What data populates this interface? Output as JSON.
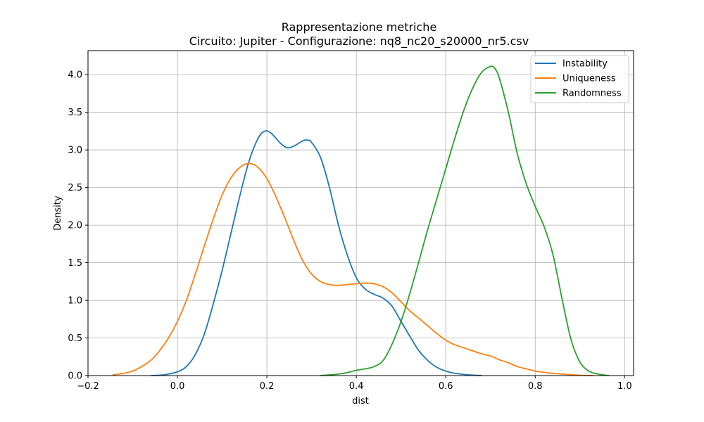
{
  "chart_data": {
    "type": "line",
    "title": "Rappresentazione metriche",
    "subtitle": "Circuito: Jupiter - Configurazione: nq8_nc20_s20000_nr5.csv",
    "xlabel": "dist",
    "ylabel": "Density",
    "xlim": [
      -0.2,
      1.02
    ],
    "ylim": [
      0,
      4.32
    ],
    "xticks": [
      "−0.2",
      "0.0",
      "0.2",
      "0.4",
      "0.6",
      "0.8",
      "1.0"
    ],
    "xtick_values": [
      -0.2,
      0.0,
      0.2,
      0.4,
      0.6,
      0.8,
      1.0
    ],
    "yticks": [
      "0.0",
      "0.5",
      "1.0",
      "1.5",
      "2.0",
      "2.5",
      "3.0",
      "3.5",
      "4.0"
    ],
    "ytick_values": [
      0.0,
      0.5,
      1.0,
      1.5,
      2.0,
      2.5,
      3.0,
      3.5,
      4.0
    ],
    "grid": true,
    "legend_position": "top-right",
    "series": [
      {
        "name": "Instability",
        "color": "#1f77b4",
        "points": [
          [
            -0.06,
            0.0
          ],
          [
            -0.03,
            0.01
          ],
          [
            0.0,
            0.05
          ],
          [
            0.02,
            0.12
          ],
          [
            0.04,
            0.28
          ],
          [
            0.06,
            0.55
          ],
          [
            0.08,
            0.95
          ],
          [
            0.1,
            1.4
          ],
          [
            0.12,
            1.9
          ],
          [
            0.14,
            2.4
          ],
          [
            0.16,
            2.85
          ],
          [
            0.18,
            3.15
          ],
          [
            0.195,
            3.25
          ],
          [
            0.21,
            3.22
          ],
          [
            0.23,
            3.09
          ],
          [
            0.245,
            3.03
          ],
          [
            0.26,
            3.05
          ],
          [
            0.28,
            3.12
          ],
          [
            0.29,
            3.13
          ],
          [
            0.3,
            3.1
          ],
          [
            0.32,
            2.9
          ],
          [
            0.34,
            2.5
          ],
          [
            0.36,
            2.0
          ],
          [
            0.38,
            1.6
          ],
          [
            0.4,
            1.3
          ],
          [
            0.42,
            1.15
          ],
          [
            0.44,
            1.08
          ],
          [
            0.46,
            1.03
          ],
          [
            0.48,
            0.92
          ],
          [
            0.5,
            0.72
          ],
          [
            0.52,
            0.52
          ],
          [
            0.54,
            0.33
          ],
          [
            0.56,
            0.2
          ],
          [
            0.58,
            0.11
          ],
          [
            0.6,
            0.06
          ],
          [
            0.62,
            0.03
          ],
          [
            0.65,
            0.01
          ],
          [
            0.68,
            0.0
          ]
        ]
      },
      {
        "name": "Uniqueness",
        "color": "#ff7f0e",
        "points": [
          [
            -0.145,
            0.01
          ],
          [
            -0.12,
            0.03
          ],
          [
            -0.1,
            0.06
          ],
          [
            -0.08,
            0.12
          ],
          [
            -0.06,
            0.2
          ],
          [
            -0.04,
            0.33
          ],
          [
            -0.02,
            0.5
          ],
          [
            0.0,
            0.72
          ],
          [
            0.02,
            1.0
          ],
          [
            0.04,
            1.35
          ],
          [
            0.06,
            1.72
          ],
          [
            0.08,
            2.08
          ],
          [
            0.1,
            2.4
          ],
          [
            0.12,
            2.63
          ],
          [
            0.14,
            2.77
          ],
          [
            0.16,
            2.82
          ],
          [
            0.18,
            2.77
          ],
          [
            0.2,
            2.62
          ],
          [
            0.22,
            2.38
          ],
          [
            0.24,
            2.1
          ],
          [
            0.26,
            1.8
          ],
          [
            0.28,
            1.53
          ],
          [
            0.3,
            1.35
          ],
          [
            0.32,
            1.25
          ],
          [
            0.34,
            1.21
          ],
          [
            0.36,
            1.2
          ],
          [
            0.38,
            1.21
          ],
          [
            0.4,
            1.22
          ],
          [
            0.42,
            1.23
          ],
          [
            0.44,
            1.22
          ],
          [
            0.46,
            1.18
          ],
          [
            0.48,
            1.1
          ],
          [
            0.5,
            0.98
          ],
          [
            0.52,
            0.86
          ],
          [
            0.54,
            0.76
          ],
          [
            0.56,
            0.66
          ],
          [
            0.58,
            0.56
          ],
          [
            0.6,
            0.47
          ],
          [
            0.62,
            0.41
          ],
          [
            0.64,
            0.37
          ],
          [
            0.66,
            0.33
          ],
          [
            0.68,
            0.29
          ],
          [
            0.7,
            0.26
          ],
          [
            0.72,
            0.21
          ],
          [
            0.74,
            0.17
          ],
          [
            0.76,
            0.12
          ],
          [
            0.78,
            0.09
          ],
          [
            0.8,
            0.06
          ],
          [
            0.83,
            0.035
          ],
          [
            0.86,
            0.02
          ],
          [
            0.9,
            0.005
          ],
          [
            0.93,
            0.0
          ]
        ]
      },
      {
        "name": "Randomness",
        "color": "#2ca02c",
        "points": [
          [
            0.32,
            0.0
          ],
          [
            0.36,
            0.02
          ],
          [
            0.38,
            0.04
          ],
          [
            0.4,
            0.07
          ],
          [
            0.42,
            0.09
          ],
          [
            0.44,
            0.12
          ],
          [
            0.46,
            0.2
          ],
          [
            0.48,
            0.42
          ],
          [
            0.5,
            0.72
          ],
          [
            0.52,
            1.1
          ],
          [
            0.54,
            1.52
          ],
          [
            0.56,
            1.95
          ],
          [
            0.58,
            2.35
          ],
          [
            0.6,
            2.75
          ],
          [
            0.62,
            3.15
          ],
          [
            0.64,
            3.52
          ],
          [
            0.66,
            3.82
          ],
          [
            0.68,
            4.03
          ],
          [
            0.7,
            4.11
          ],
          [
            0.71,
            4.08
          ],
          [
            0.72,
            3.95
          ],
          [
            0.74,
            3.5
          ],
          [
            0.76,
            2.95
          ],
          [
            0.78,
            2.55
          ],
          [
            0.8,
            2.25
          ],
          [
            0.82,
            1.98
          ],
          [
            0.84,
            1.6
          ],
          [
            0.86,
            1.02
          ],
          [
            0.88,
            0.48
          ],
          [
            0.9,
            0.18
          ],
          [
            0.92,
            0.06
          ],
          [
            0.94,
            0.02
          ],
          [
            0.965,
            0.0
          ]
        ]
      }
    ]
  }
}
